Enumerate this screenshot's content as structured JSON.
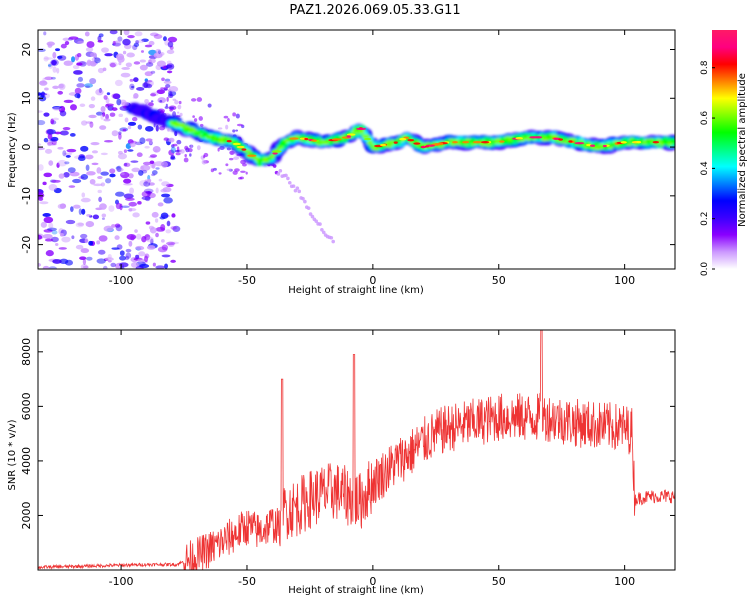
{
  "title": "PAZ1.2026.069.05.33.G11",
  "chart_data": [
    {
      "type": "heatmap",
      "name": "spectrogram",
      "xlabel": "Height of straight line (km)",
      "ylabel": "Frequency (Hz)",
      "xlim": [
        -133,
        120
      ],
      "ylim": [
        -25,
        24
      ],
      "xticks": [
        -100,
        -50,
        0,
        50,
        100
      ],
      "xtick_labels": [
        "-100",
        "-50",
        "0",
        "50",
        "100"
      ],
      "yticks": [
        -20,
        -10,
        0,
        10,
        20
      ],
      "ytick_labels": [
        "-20",
        "-10",
        "0",
        "10",
        "20"
      ],
      "ridge": {
        "description": "main spectral line, frequency (Hz) vs height (km)",
        "x": [
          -95,
          -85,
          -75,
          -65,
          -55,
          -50,
          -45,
          -40,
          -35,
          -30,
          -20,
          -10,
          -5,
          0,
          10,
          13,
          20,
          30,
          40,
          50,
          60,
          70,
          80,
          90,
          100,
          110,
          120
        ],
        "y": [
          8,
          6,
          4,
          2,
          1,
          -1,
          -3,
          -2,
          1,
          2,
          1,
          2,
          4,
          0,
          1,
          2,
          0,
          1,
          1,
          1,
          2,
          2,
          1,
          0,
          1,
          1,
          1
        ]
      },
      "secondary_branch": {
        "x": [
          -45,
          -40,
          -35,
          -30,
          -25,
          -20,
          -15
        ],
        "y": [
          -2,
          -4,
          -6,
          -9,
          -13,
          -17,
          -20
        ]
      },
      "colorbar": {
        "label": "Normalized spectral amplitude",
        "range": [
          0,
          0.95
        ],
        "ticks": [
          "0.0",
          "0.2",
          "0.4",
          "0.6",
          "0.8"
        ],
        "colors": [
          "#ffffff",
          "#cc99ff",
          "#8a00ff",
          "#3a00ff",
          "#0000ff",
          "#0080ff",
          "#00ffff",
          "#00ff80",
          "#00ff00",
          "#80ff00",
          "#ffff00",
          "#ff8000",
          "#ff0000",
          "#ff0080",
          "#ff1a66"
        ]
      }
    },
    {
      "type": "line",
      "name": "snr",
      "xlabel": "Height of straight line (km)",
      "ylabel": "SNR (10 * v/v)",
      "xlim": [
        -133,
        120
      ],
      "ylim": [
        0,
        8800
      ],
      "xticks": [
        -100,
        -50,
        0,
        50,
        100
      ],
      "xtick_labels": [
        "-100",
        "-50",
        "0",
        "50",
        "100"
      ],
      "yticks": [
        2000,
        4000,
        6000,
        8000
      ],
      "ytick_labels": [
        "2000",
        "4000",
        "6000",
        "8000"
      ],
      "color": "#ee3333",
      "baseline": {
        "x": [
          -133,
          -110,
          -90,
          -78,
          -70,
          -62,
          -55,
          -50,
          -45,
          -40,
          -36,
          -35,
          -30,
          -25,
          -20,
          -15,
          -10,
          -5,
          0,
          5,
          10,
          15,
          20,
          25,
          30,
          40,
          50,
          60,
          70,
          80,
          90,
          100,
          103,
          104,
          110,
          120
        ],
        "y": [
          100,
          150,
          200,
          200,
          500,
          900,
          1300,
          1600,
          1400,
          1700,
          1500,
          2200,
          2300,
          2600,
          2800,
          2900,
          2700,
          2500,
          3200,
          3600,
          4000,
          4300,
          4700,
          5000,
          5200,
          5400,
          5600,
          5600,
          5600,
          5400,
          5300,
          5200,
          5100,
          2600,
          2700,
          2700
        ]
      },
      "spikes": [
        {
          "x": -36,
          "y": 7000
        },
        {
          "x": -7.5,
          "y": 7900
        },
        {
          "x": 67,
          "y": 8800
        }
      ]
    }
  ]
}
